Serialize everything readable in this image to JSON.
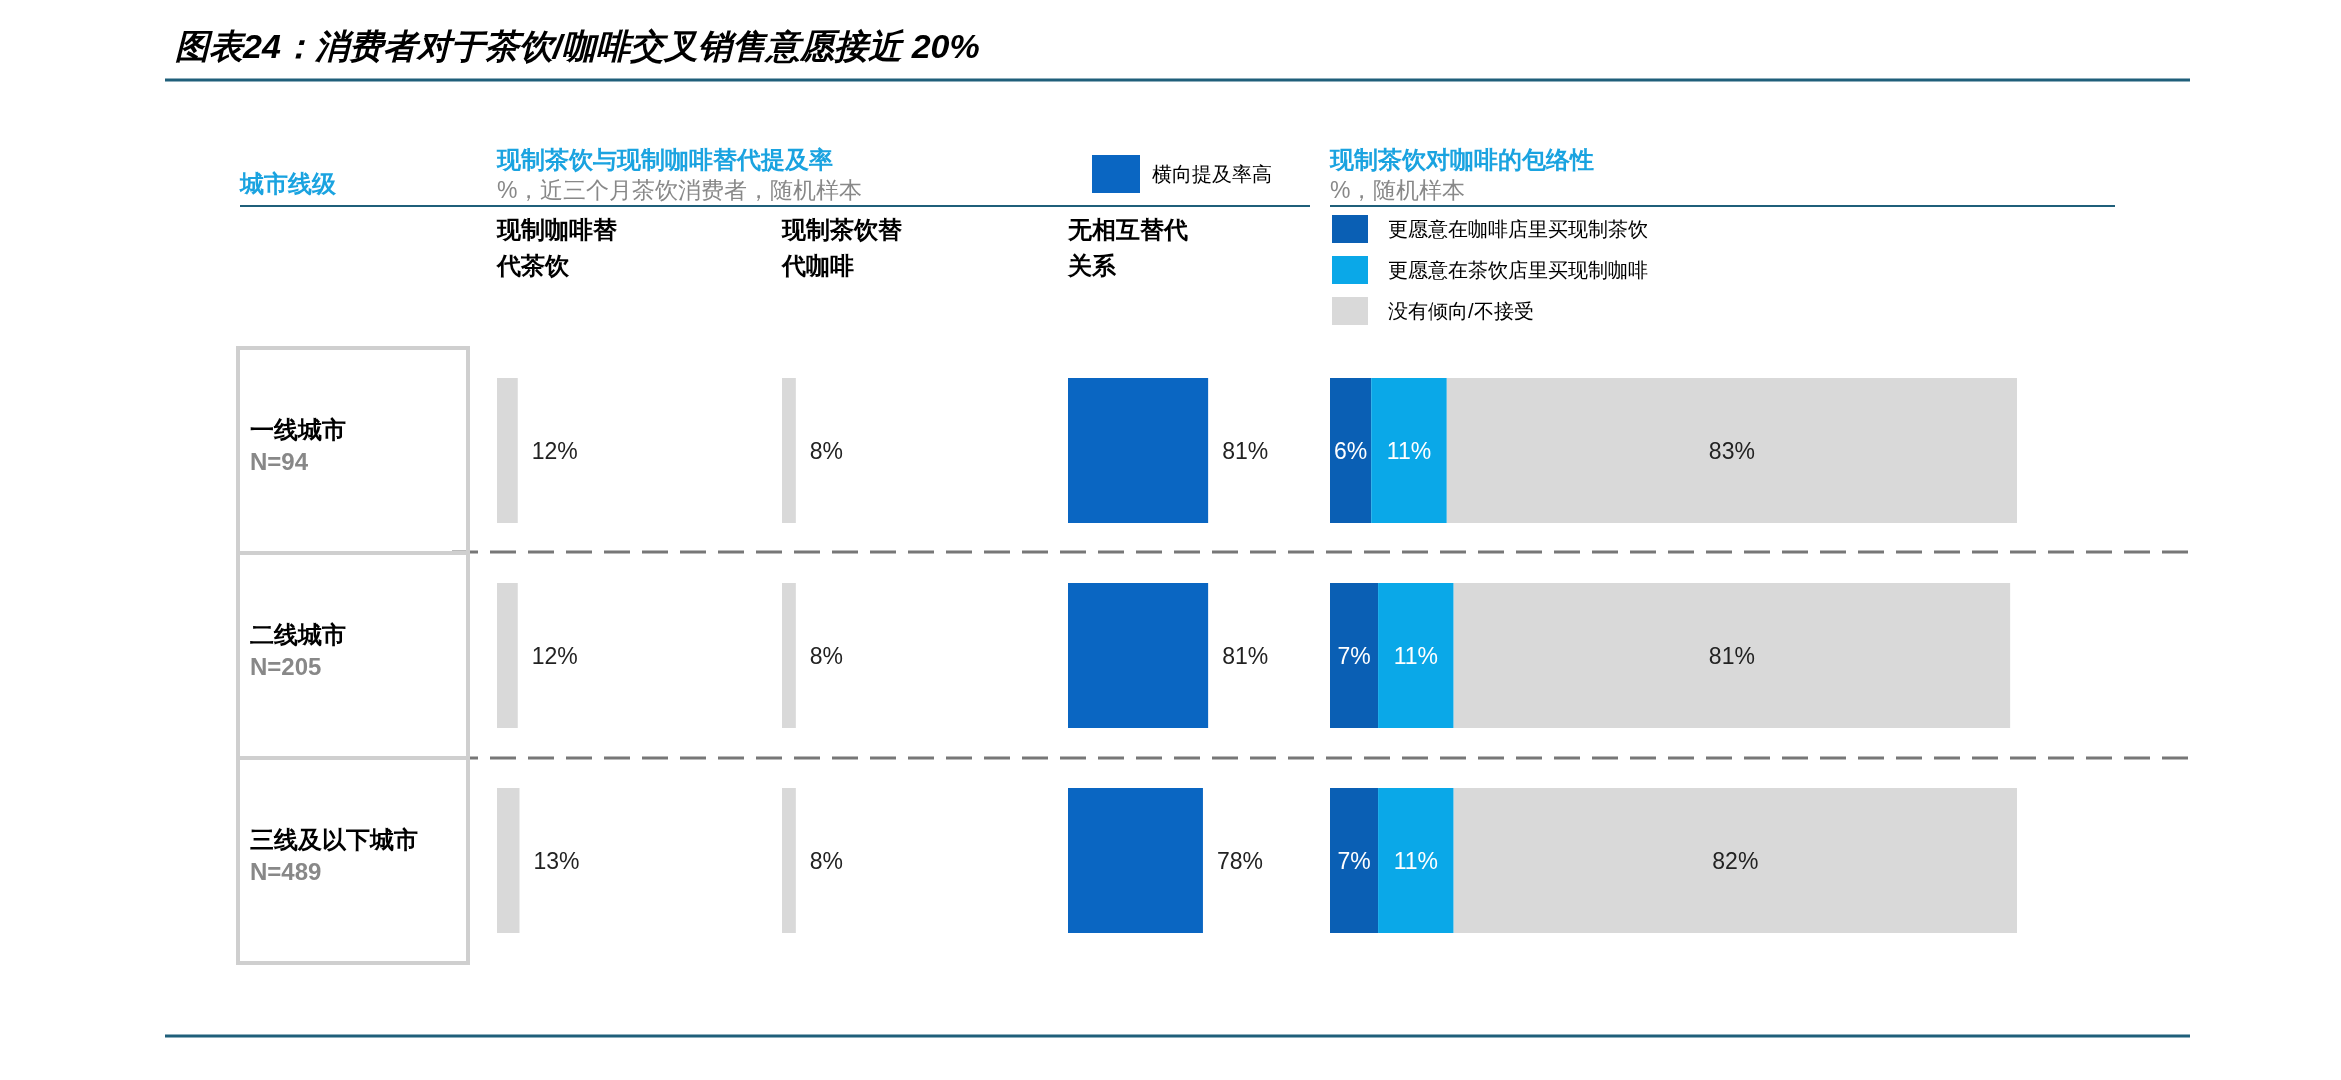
{
  "chart_data": [
    {
      "type": "bar",
      "orientation": "horizontal",
      "title": "图表24：消费者对于茶饮/咖啡交叉销售意愿接近 20%",
      "subtitle": "现制茶饮与现制咖啡替代提及率",
      "annotations": [
        "%，近三个月茶饮消费者，随机样本"
      ],
      "ylabel": "城市线级",
      "xlabel": "现制咖啡替代茶饮",
      "categories": [
        "一线城市\nN=94",
        "二线城市\nN=205",
        "三线及以下城市\nN=489"
      ],
      "series": [
        {
          "color": "#d9d9d9",
          "values": [
            12,
            12,
            13
          ],
          "value_labels": [
            "12%",
            "12%",
            "13%"
          ]
        }
      ]
    },
    {
      "type": "bar",
      "orientation": "horizontal",
      "xlabel": "现制茶饮替代咖啡",
      "categories": [
        null,
        null,
        null
      ],
      "series": [
        {
          "color": "#d9d9d9",
          "values": [
            8,
            8,
            8
          ],
          "value_labels": [
            "8%",
            "8%",
            "8%"
          ]
        }
      ]
    },
    {
      "type": "bar",
      "orientation": "horizontal",
      "xlabel": "无相互替代关系",
      "legend": "top",
      "categories": [
        null,
        null,
        null
      ],
      "series": [
        {
          "name": "横向提及率高",
          "color": "#0a66c2",
          "values": [
            81,
            81,
            78
          ],
          "value_labels": [
            "81%",
            "81%",
            "78%"
          ]
        }
      ]
    },
    {
      "type": "bar",
      "orientation": "horizontal",
      "stacked": true,
      "title": "现制茶饮对咖啡的包络性",
      "subtitle": "%，随机样本",
      "legend": "top",
      "categories": [
        null,
        null,
        null
      ],
      "series": [
        {
          "name": "更愿意在咖啡店里买现制茶饮",
          "color": "#0a5fb4",
          "values": [
            6,
            7,
            7
          ],
          "value_labels": [
            "6%",
            "7%",
            "7%"
          ]
        },
        {
          "name": "更愿意在茶饮店里买现制咖啡",
          "color": "#0aa8e8",
          "values": [
            11,
            11,
            11
          ],
          "value_labels": [
            "11%",
            "11%",
            "11%"
          ]
        },
        {
          "name": "没有倾向/不接受",
          "color": "#d9d9d9",
          "values": [
            83,
            81,
            82
          ],
          "value_labels": [
            "83%",
            "81%",
            "82%"
          ]
        }
      ]
    }
  ]
}
